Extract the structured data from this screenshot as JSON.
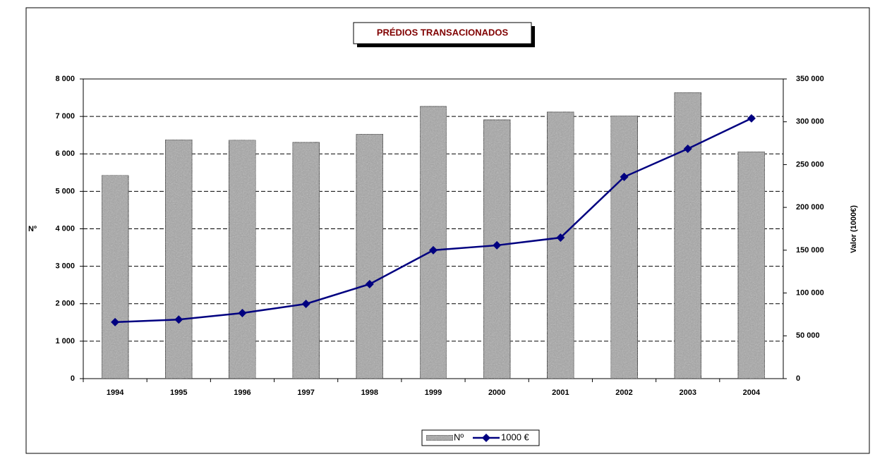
{
  "chart_data": {
    "type": "bar_line",
    "title": "PRÉDIOS TRANSACIONADOS",
    "ylabel": "Nº",
    "y2label": "Valor (1000€)",
    "categories": [
      "1994",
      "1995",
      "1996",
      "1997",
      "1998",
      "1999",
      "2000",
      "2001",
      "2002",
      "2003",
      "2004"
    ],
    "series": [
      {
        "name": "Nº",
        "type": "bar",
        "color": "#a6a6a6",
        "values": [
          5430,
          6380,
          6370,
          6310,
          6530,
          7270,
          6910,
          7120,
          7020,
          7640,
          6060
        ]
      },
      {
        "name": "1000 €",
        "type": "line",
        "axis": "y2",
        "color": "#000080",
        "values": [
          66000,
          69000,
          76600,
          87300,
          110400,
          150000,
          155700,
          164700,
          235600,
          268500,
          304000
        ]
      }
    ],
    "ylim": [
      0,
      8000
    ],
    "yticks": [
      0,
      {
        "value": 1000,
        "label": "1 000"
      },
      {
        "value": 2000,
        "label": "2 000"
      },
      {
        "value": 3000,
        "label": "3 000"
      },
      {
        "value": 4000,
        "label": "4 000"
      },
      {
        "value": 5000,
        "label": "5 000"
      },
      {
        "value": 6000,
        "label": "6 000"
      },
      {
        "value": 7000,
        "label": "7 000"
      },
      {
        "value": 8000,
        "label": "8 000"
      }
    ],
    "y2lim": [
      0,
      350000
    ],
    "y2ticks": [
      0,
      {
        "value": 50000,
        "label": "50 000"
      },
      {
        "value": 100000,
        "label": "100 000"
      },
      {
        "value": 150000,
        "label": "150 000"
      },
      {
        "value": 200000,
        "label": "200 000"
      },
      {
        "value": 250000,
        "label": "250 000"
      },
      {
        "value": 300000,
        "label": "300 000"
      },
      {
        "value": 350000,
        "label": "350 000"
      }
    ],
    "grid": true
  }
}
